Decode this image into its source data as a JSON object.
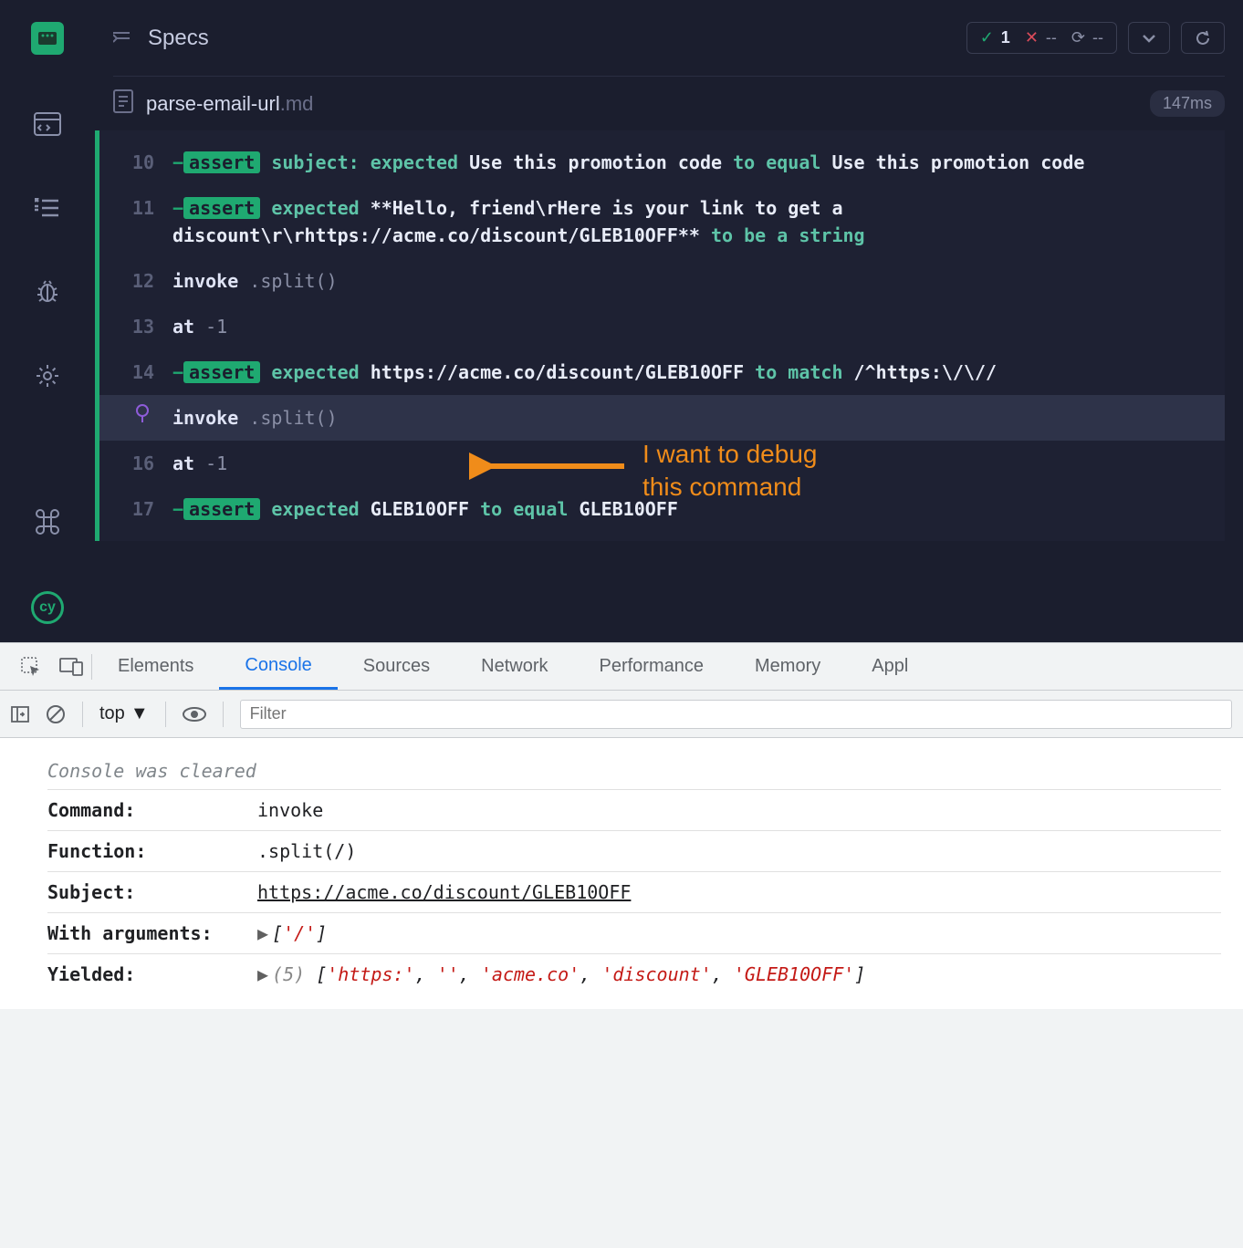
{
  "colors": {
    "bg": "#1b1e2e",
    "panel_bg": "#1e2133",
    "accent": "#1fa971",
    "teal": "#5ec4a8",
    "text_light": "#c5cadf",
    "text_dim": "#8a8fa6",
    "line_num": "#5a5f78",
    "highlight_row": "#2e3349",
    "orange": "#f08c1a",
    "pin": "#8e5cd9",
    "devtools_bg": "#f1f3f4",
    "devtools_border": "#cacdd1",
    "devtools_active": "#1a73e8",
    "console_red": "#c41a16"
  },
  "header": {
    "title": "Specs",
    "stats": {
      "pass": "1",
      "fail": "--",
      "pending": "--"
    }
  },
  "file": {
    "name": "parse-email-url",
    "ext": ".md",
    "time": "147ms"
  },
  "log_rows": [
    {
      "ln": "10",
      "type": "assert",
      "parts": [
        {
          "t": "dash",
          "v": "−"
        },
        {
          "t": "badge",
          "v": "assert"
        },
        {
          "t": "sp"
        },
        {
          "t": "teal",
          "v": " subject: expected "
        },
        {
          "t": "white",
          "v": "Use this promotion code "
        },
        {
          "t": "teal",
          "v": "to equal "
        },
        {
          "t": "white",
          "v": "Use this promotion code"
        }
      ]
    },
    {
      "ln": "11",
      "type": "assert",
      "parts": [
        {
          "t": "dash",
          "v": "−"
        },
        {
          "t": "badge",
          "v": "assert"
        },
        {
          "t": "sp"
        },
        {
          "t": "teal",
          "v": " expected "
        },
        {
          "t": "white",
          "v": "**Hello, friend\\rHere is your link to get a discount\\r\\rhttps://acme.co/discount/GLEB10OFF** "
        },
        {
          "t": "teal",
          "v": "to be a string"
        }
      ]
    },
    {
      "ln": "12",
      "type": "cmd",
      "parts": [
        {
          "t": "cmd",
          "v": "invoke "
        },
        {
          "t": "gray",
          "v": " .split()"
        }
      ]
    },
    {
      "ln": "13",
      "type": "cmd",
      "parts": [
        {
          "t": "cmd",
          "v": "at "
        },
        {
          "t": "gray",
          "v": " -1"
        }
      ]
    },
    {
      "ln": "14",
      "type": "assert",
      "parts": [
        {
          "t": "dash",
          "v": "−"
        },
        {
          "t": "badge",
          "v": "assert"
        },
        {
          "t": "sp"
        },
        {
          "t": "teal",
          "v": " expected "
        },
        {
          "t": "white",
          "v": "https://acme.co/discount/GLEB10OFF "
        },
        {
          "t": "teal",
          "v": "to match "
        },
        {
          "t": "white",
          "v": "/^https:\\/\\//"
        }
      ]
    },
    {
      "ln": "",
      "pinned": true,
      "highlighted": true,
      "type": "cmd",
      "parts": [
        {
          "t": "cmd",
          "v": "invoke "
        },
        {
          "t": "gray",
          "v": " .split()"
        }
      ]
    },
    {
      "ln": "16",
      "type": "cmd",
      "parts": [
        {
          "t": "cmd",
          "v": "at "
        },
        {
          "t": "gray",
          "v": " -1"
        }
      ]
    },
    {
      "ln": "17",
      "type": "assert",
      "parts": [
        {
          "t": "dash",
          "v": "−"
        },
        {
          "t": "badge",
          "v": "assert"
        },
        {
          "t": "sp"
        },
        {
          "t": "teal",
          "v": " expected "
        },
        {
          "t": "white",
          "v": "GLEB10OFF "
        },
        {
          "t": "teal",
          "v": "to equal "
        },
        {
          "t": "white",
          "v": "GLEB10OFF"
        }
      ]
    }
  ],
  "annotation": {
    "line1": "I want to debug",
    "line2": "this command"
  },
  "devtools": {
    "tabs": [
      "Elements",
      "Console",
      "Sources",
      "Network",
      "Performance",
      "Memory",
      "Appl"
    ],
    "active_tab": "Console",
    "context": "top",
    "filter_placeholder": "Filter",
    "cleared": "Console was cleared",
    "rows": [
      {
        "key": "Command:",
        "type": "text",
        "val": "invoke"
      },
      {
        "key": "Function:",
        "type": "text",
        "val": ".split(/)"
      },
      {
        "key": "Subject:",
        "type": "link",
        "val": "https://acme.co/discount/GLEB10OFF"
      },
      {
        "key": "With arguments:",
        "type": "array",
        "len": "",
        "items": [
          "'/'"
        ]
      },
      {
        "key": "Yielded:",
        "type": "array",
        "len": "(5) ",
        "items": [
          "'https:'",
          "''",
          "'acme.co'",
          "'discount'",
          "'GLEB10OFF'"
        ]
      }
    ]
  }
}
